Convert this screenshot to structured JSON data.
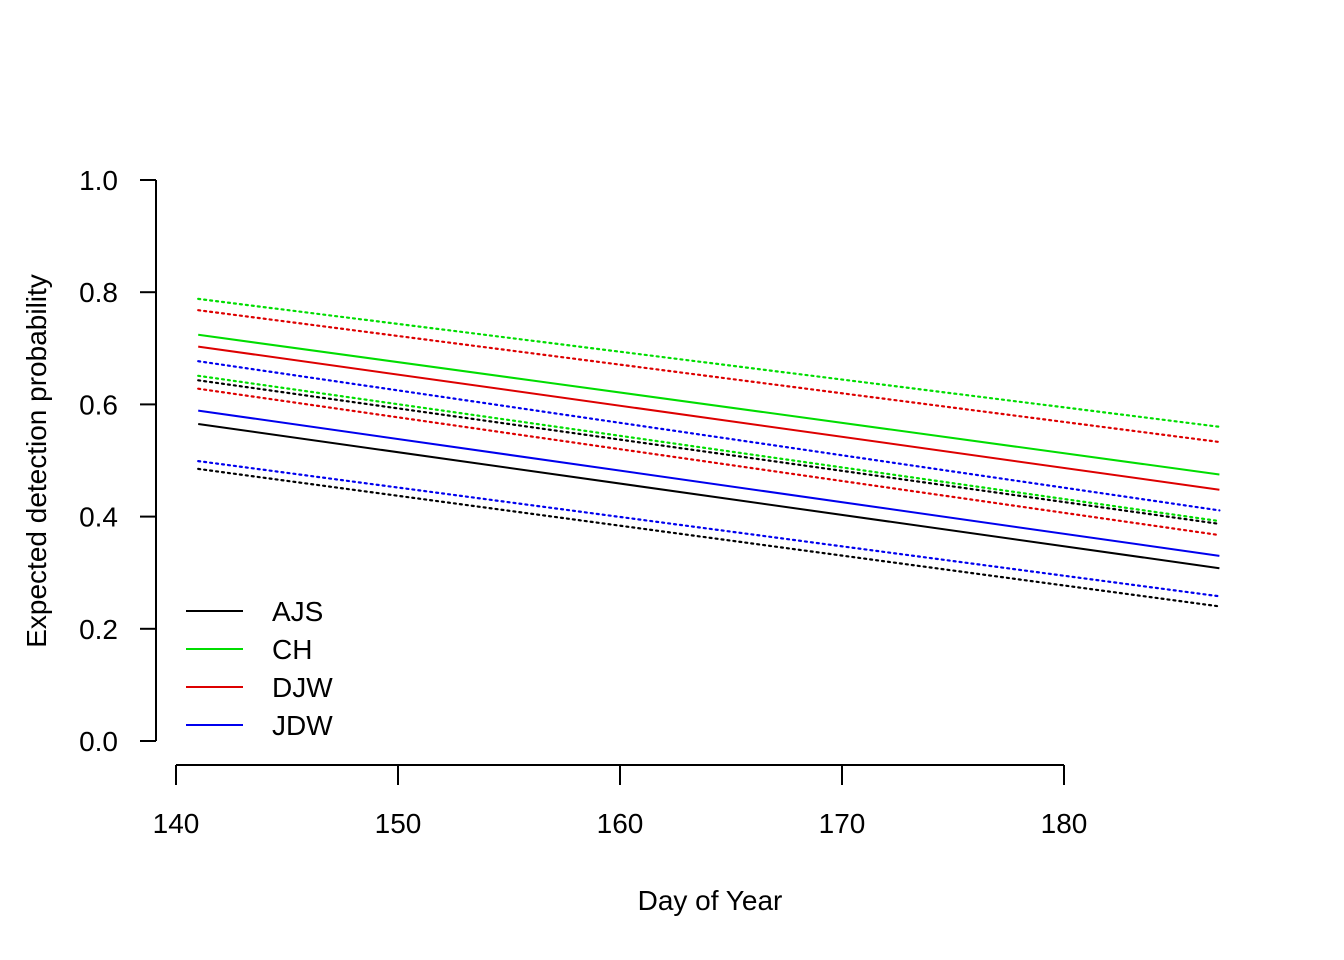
{
  "chart_data": {
    "type": "line",
    "title": "",
    "xlabel": "Day of Year",
    "ylabel": "Expected detection probability",
    "xlim": [
      140,
      187
    ],
    "ylim": [
      0,
      1
    ],
    "x_ticks": [
      140,
      150,
      160,
      170,
      180
    ],
    "x_tick_labels": [
      "140",
      "150",
      "160",
      "170",
      "180"
    ],
    "y_ticks": [
      0,
      0.2,
      0.4,
      0.6,
      0.8,
      1.0
    ],
    "y_tick_labels": [
      "0.0",
      "0.2",
      "0.4",
      "0.6",
      "0.8",
      "1.0"
    ],
    "grid": false,
    "legend_position": "bottom-left",
    "x": [
      141,
      187
    ],
    "series": [
      {
        "name": "AJS",
        "color": "#000000",
        "values": [
          0.565,
          0.308
        ],
        "lower": [
          0.485,
          0.24
        ],
        "upper": [
          0.643,
          0.387
        ]
      },
      {
        "name": "CH",
        "color": "#00dd00",
        "values": [
          0.724,
          0.475
        ],
        "lower": [
          0.651,
          0.392
        ],
        "upper": [
          0.788,
          0.56
        ]
      },
      {
        "name": "DJW",
        "color": "#dd0000",
        "values": [
          0.703,
          0.448
        ],
        "lower": [
          0.628,
          0.367
        ],
        "upper": [
          0.768,
          0.533
        ]
      },
      {
        "name": "JDW",
        "color": "#0000ee",
        "values": [
          0.589,
          0.33
        ],
        "lower": [
          0.499,
          0.258
        ],
        "upper": [
          0.677,
          0.411
        ]
      }
    ]
  }
}
